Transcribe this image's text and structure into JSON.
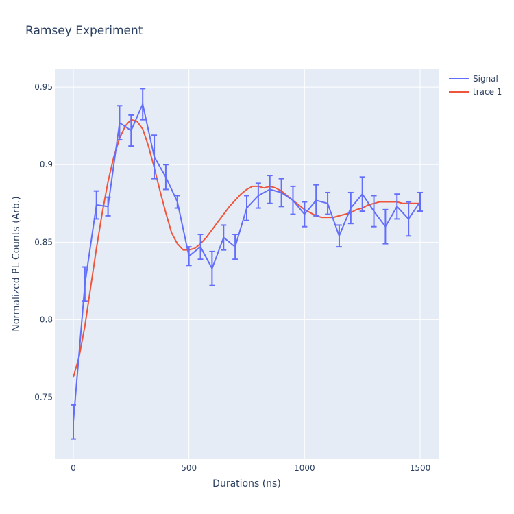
{
  "chart_data": {
    "type": "line",
    "title": "Ramsey Experiment",
    "xlabel": "Durations (ns)",
    "ylabel": "Normalized PL Counts (Arb.)",
    "xlim": [
      -80,
      1580
    ],
    "ylim": [
      0.71,
      0.962
    ],
    "grid": true,
    "legend": "top-right",
    "xticks": [
      0,
      500,
      1000,
      1500
    ],
    "xtick_labels": [
      "0",
      "500",
      "1000",
      "1500"
    ],
    "yticks": [
      0.75,
      0.8,
      0.85,
      0.9,
      0.95
    ],
    "ytick_labels": [
      "0.75",
      "0.8",
      "0.85",
      "0.9",
      "0.95"
    ],
    "colors": {
      "plot_bg": "#e5ecf6",
      "grid": "#ffffff",
      "signal": "#636efa",
      "fit": "#ef553b",
      "text": "#2a3f5f"
    },
    "series": [
      {
        "name": "Signal",
        "color": "#636efa",
        "mode": "lines",
        "error_bars": true,
        "x": [
          0,
          50,
          100,
          150,
          200,
          250,
          300,
          350,
          400,
          450,
          500,
          550,
          600,
          650,
          700,
          750,
          800,
          850,
          900,
          950,
          1000,
          1050,
          1100,
          1150,
          1200,
          1250,
          1300,
          1350,
          1400,
          1450,
          1500
        ],
        "y": [
          0.734,
          0.823,
          0.874,
          0.873,
          0.927,
          0.922,
          0.939,
          0.905,
          0.892,
          0.876,
          0.841,
          0.847,
          0.833,
          0.853,
          0.847,
          0.872,
          0.88,
          0.884,
          0.882,
          0.877,
          0.868,
          0.877,
          0.875,
          0.854,
          0.872,
          0.881,
          0.87,
          0.86,
          0.873,
          0.865,
          0.876
        ],
        "error": [
          0.011,
          0.011,
          0.009,
          0.006,
          0.011,
          0.01,
          0.01,
          0.014,
          0.008,
          0.004,
          0.006,
          0.008,
          0.011,
          0.008,
          0.008,
          0.008,
          0.008,
          0.009,
          0.009,
          0.009,
          0.008,
          0.01,
          0.007,
          0.007,
          0.01,
          0.011,
          0.01,
          0.011,
          0.008,
          0.011,
          0.006
        ]
      },
      {
        "name": "trace 1",
        "color": "#ef553b",
        "mode": "lines",
        "x": [
          0,
          25,
          50,
          75,
          100,
          125,
          150,
          175,
          200,
          225,
          250,
          275,
          300,
          325,
          350,
          375,
          400,
          425,
          450,
          475,
          500,
          525,
          550,
          575,
          600,
          625,
          650,
          675,
          700,
          725,
          750,
          775,
          800,
          825,
          850,
          875,
          900,
          925,
          950,
          975,
          1000,
          1025,
          1050,
          1075,
          1100,
          1125,
          1150,
          1175,
          1200,
          1225,
          1250,
          1275,
          1300,
          1325,
          1350,
          1375,
          1400,
          1425,
          1450,
          1475,
          1500
        ],
        "y": [
          0.763,
          0.776,
          0.796,
          0.821,
          0.846,
          0.869,
          0.889,
          0.905,
          0.917,
          0.925,
          0.929,
          0.928,
          0.923,
          0.912,
          0.898,
          0.883,
          0.869,
          0.856,
          0.849,
          0.845,
          0.845,
          0.846,
          0.849,
          0.853,
          0.858,
          0.863,
          0.868,
          0.873,
          0.877,
          0.881,
          0.884,
          0.886,
          0.886,
          0.885,
          0.886,
          0.885,
          0.883,
          0.88,
          0.877,
          0.874,
          0.871,
          0.869,
          0.867,
          0.866,
          0.866,
          0.866,
          0.867,
          0.868,
          0.869,
          0.871,
          0.872,
          0.874,
          0.875,
          0.876,
          0.876,
          0.876,
          0.876,
          0.875,
          0.875,
          0.875,
          0.875
        ]
      }
    ]
  }
}
